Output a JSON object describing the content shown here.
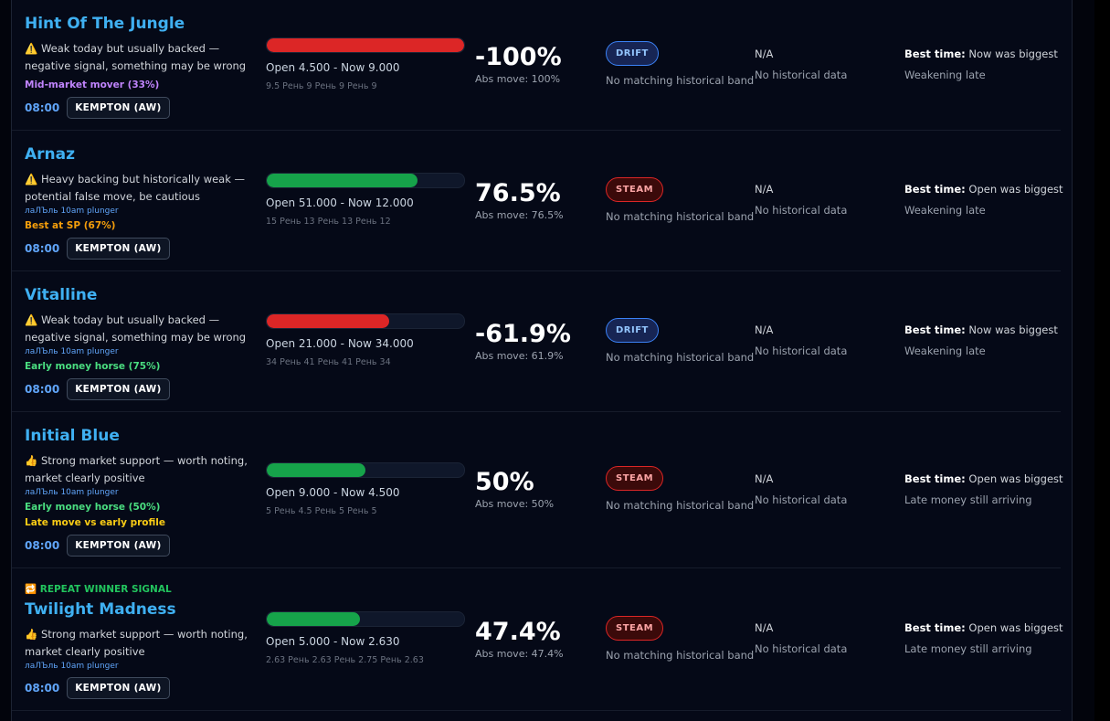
{
  "rows": [
    {
      "name": "Hint Of The Jungle",
      "warning": "⚠️ Weak today but usually backed — negative signal, something may be wrong",
      "profiles": [
        {
          "text": "Mid-market mover (33%)",
          "color": "#c084fc"
        }
      ],
      "time": "08:00",
      "course": "KEMPTON (AW)",
      "bar": 100,
      "bar_color": "#dc2626",
      "odds": "Open 4.500 - Now 9.000",
      "history": "9.5 Рень 9 Рень 9 Рень 9",
      "move": "-100%",
      "abs_move": "Abs move: 100%",
      "badge": "DRIFT",
      "badge_color": "#93c5fd",
      "badge_bg": "#172554",
      "badge_border": "#3b82f6",
      "band": "No matching historical band",
      "na": "N/A",
      "history_note": "No historical data",
      "best_label": "Best time:",
      "best_value": "Now was biggest",
      "trend": "Weakening late"
    },
    {
      "name": "Arnaz",
      "warning": "⚠️ Heavy backing but historically weak — potential false move, be cautious",
      "tag": "лаЛЪль 10am plunger",
      "profiles": [
        {
          "text": "Best at SP (67%)",
          "color": "#f59e0b"
        }
      ],
      "time": "08:00",
      "course": "KEMPTON (AW)",
      "bar": 76.5,
      "bar_color": "#16a34a",
      "odds": "Open 51.000 - Now 12.000",
      "history": "15 Рень 13 Рень 13 Рень 12",
      "move": "76.5%",
      "abs_move": "Abs move: 76.5%",
      "badge": "STEAM",
      "badge_color": "#fca5a5",
      "badge_bg": "#3b0a0a",
      "badge_border": "#dc2626",
      "band": "No matching historical band",
      "na": "N/A",
      "history_note": "No historical data",
      "best_label": "Best time:",
      "best_value": "Open was biggest",
      "trend": "Weakening late"
    },
    {
      "name": "Vitalline",
      "warning": "⚠️ Weak today but usually backed — negative signal, something may be wrong",
      "tag": "лаЛЪль 10am plunger",
      "profiles": [
        {
          "text": "Early money horse (75%)",
          "color": "#4ade80"
        }
      ],
      "time": "08:00",
      "course": "KEMPTON (AW)",
      "bar": 61.9,
      "bar_color": "#dc2626",
      "odds": "Open 21.000 - Now 34.000",
      "history": "34 Рень 41 Рень 41 Рень 34",
      "move": "-61.9%",
      "abs_move": "Abs move: 61.9%",
      "badge": "DRIFT",
      "badge_color": "#93c5fd",
      "badge_bg": "#172554",
      "badge_border": "#3b82f6",
      "band": "No matching historical band",
      "na": "N/A",
      "history_note": "No historical data",
      "best_label": "Best time:",
      "best_value": "Now was biggest",
      "trend": "Weakening late"
    },
    {
      "name": "Initial Blue",
      "warning": "👍 Strong market support — worth noting, market clearly positive",
      "tag": "лаЛЪль 10am plunger",
      "profiles": [
        {
          "text": "Early money horse (50%)",
          "color": "#4ade80"
        },
        {
          "text": "Late move vs early profile",
          "color": "#facc15"
        }
      ],
      "time": "08:00",
      "course": "KEMPTON (AW)",
      "bar": 50,
      "bar_color": "#16a34a",
      "odds": "Open 9.000 - Now 4.500",
      "history": "5 Рень 4.5 Рень 5 Рень 5",
      "move": "50%",
      "abs_move": "Abs move: 50%",
      "badge": "STEAM",
      "badge_color": "#fca5a5",
      "badge_bg": "#3b0a0a",
      "badge_border": "#dc2626",
      "band": "No matching historical band",
      "na": "N/A",
      "history_note": "No historical data",
      "best_label": "Best time:",
      "best_value": "Open was biggest",
      "trend": "Late money still arriving"
    },
    {
      "signal": "🔁 REPEAT WINNER SIGNAL",
      "name": "Twilight Madness",
      "warning": "👍 Strong market support — worth noting, market clearly positive",
      "tag": "лаЛЪль 10am plunger",
      "profiles": [],
      "time": "08:00",
      "course": "KEMPTON (AW)",
      "bar": 47.4,
      "bar_color": "#16a34a",
      "odds": "Open 5.000 - Now 2.630",
      "history": "2.63 Рень 2.63 Рень 2.75 Рень 2.63",
      "move": "47.4%",
      "abs_move": "Abs move: 47.4%",
      "badge": "STEAM",
      "badge_color": "#fca5a5",
      "badge_bg": "#3b0a0a",
      "badge_border": "#dc2626",
      "band": "No matching historical band",
      "na": "N/A",
      "history_note": "No historical data",
      "best_label": "Best time:",
      "best_value": "Open was biggest",
      "trend": "Late money still arriving"
    }
  ]
}
